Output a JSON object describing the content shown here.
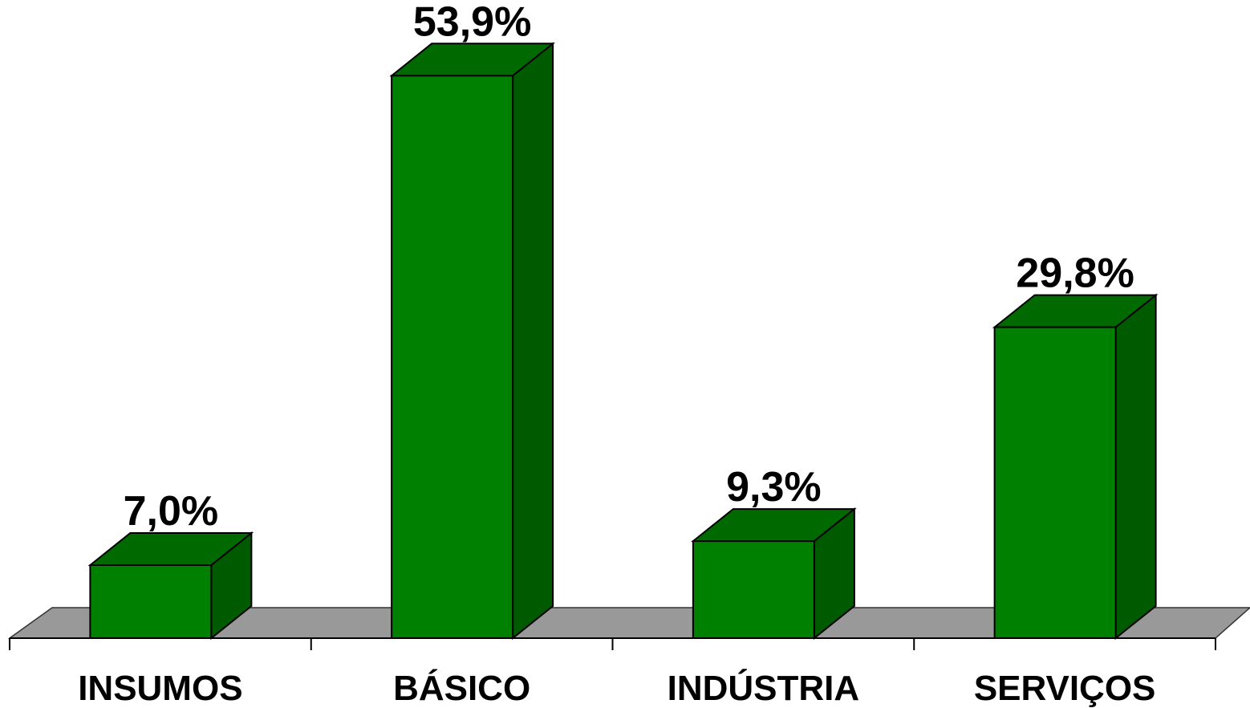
{
  "chart_data": {
    "type": "bar3d",
    "categories": [
      "INSUMOS",
      "BÁSICO",
      "INDÚSTRIA",
      "SERVIÇOS"
    ],
    "values": [
      7.0,
      53.9,
      9.3,
      29.8
    ],
    "value_labels": [
      "7,0%",
      "53,9%",
      "9,3%",
      "29,8%"
    ],
    "color": "#008000"
  }
}
